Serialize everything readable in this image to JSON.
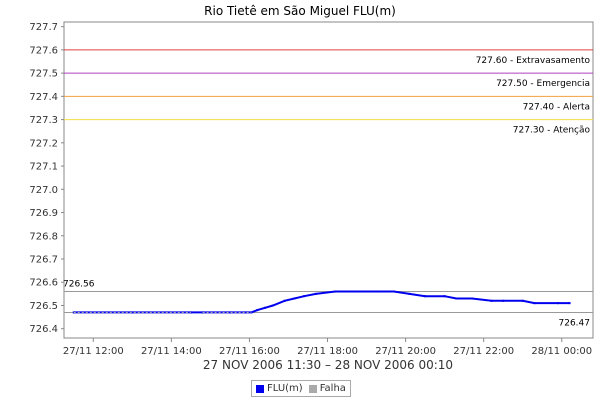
{
  "chart_data": {
    "type": "line",
    "title": "Rio Tietê em São Miguel FLU(m)",
    "date_range_label": "27 NOV 2006 11:30 – 28 NOV 2006 00:10",
    "y_ticks": [
      "726.4",
      "726.5",
      "726.6",
      "726.7",
      "726.8",
      "726.9",
      "727.0",
      "727.1",
      "727.2",
      "727.3",
      "727.4",
      "727.5",
      "727.6",
      "727.7"
    ],
    "ylim": [
      726.36,
      727.72
    ],
    "x_ticks": [
      "27/11 12:00",
      "27/11 14:00",
      "27/11 16:00",
      "27/11 18:00",
      "27/11 20:00",
      "27/11 22:00",
      "28/11 00:00"
    ],
    "x_tick_hours": [
      12,
      14,
      16,
      18,
      20,
      22,
      24
    ],
    "xlim_hours": [
      11.25,
      24.8
    ],
    "thresholds": [
      {
        "value": 727.6,
        "label": "727.60 - Extravasamento",
        "color": "#e04040"
      },
      {
        "value": 727.5,
        "label": "727.50 - Emergencia",
        "color": "#b040c0"
      },
      {
        "value": 727.4,
        "label": "727.40 - Alerta",
        "color": "#f0a040"
      },
      {
        "value": 727.3,
        "label": "727.30 - Atenção",
        "color": "#f0e040"
      }
    ],
    "reference_lines": [
      {
        "value": 726.56,
        "label": "726.56",
        "color": "#999999",
        "label_side": "left"
      },
      {
        "value": 726.47,
        "label": "726.47",
        "color": "#999999",
        "label_side": "right"
      }
    ],
    "series": [
      {
        "name": "FLU(m)",
        "color": "#0000ee",
        "x_hours": [
          11.5,
          13.0,
          14.5,
          14.8,
          15.5,
          15.9,
          16.05,
          16.2,
          16.4,
          16.6,
          16.9,
          17.15,
          17.4,
          17.7,
          18.2,
          18.7,
          19.3,
          19.7,
          20.1,
          20.5,
          21.0,
          21.3,
          21.7,
          22.2,
          22.5,
          23.0,
          23.3,
          23.9,
          24.2
        ],
        "values": [
          726.47,
          726.47,
          726.47,
          726.47,
          726.47,
          726.47,
          726.47,
          726.48,
          726.49,
          726.5,
          726.52,
          726.53,
          726.54,
          726.55,
          726.56,
          726.56,
          726.56,
          726.56,
          726.55,
          726.54,
          726.54,
          726.53,
          726.53,
          726.52,
          726.52,
          726.52,
          726.51,
          726.51,
          726.51
        ]
      },
      {
        "name": "Falha",
        "color": "#aaaaaa",
        "segments": [
          [
            11.5,
            14.5
          ],
          [
            14.8,
            16.05
          ]
        ],
        "value": 726.47
      }
    ],
    "legend": [
      "FLU(m)",
      "Falha"
    ],
    "legend_position": "bottom-center",
    "grid": false
  }
}
